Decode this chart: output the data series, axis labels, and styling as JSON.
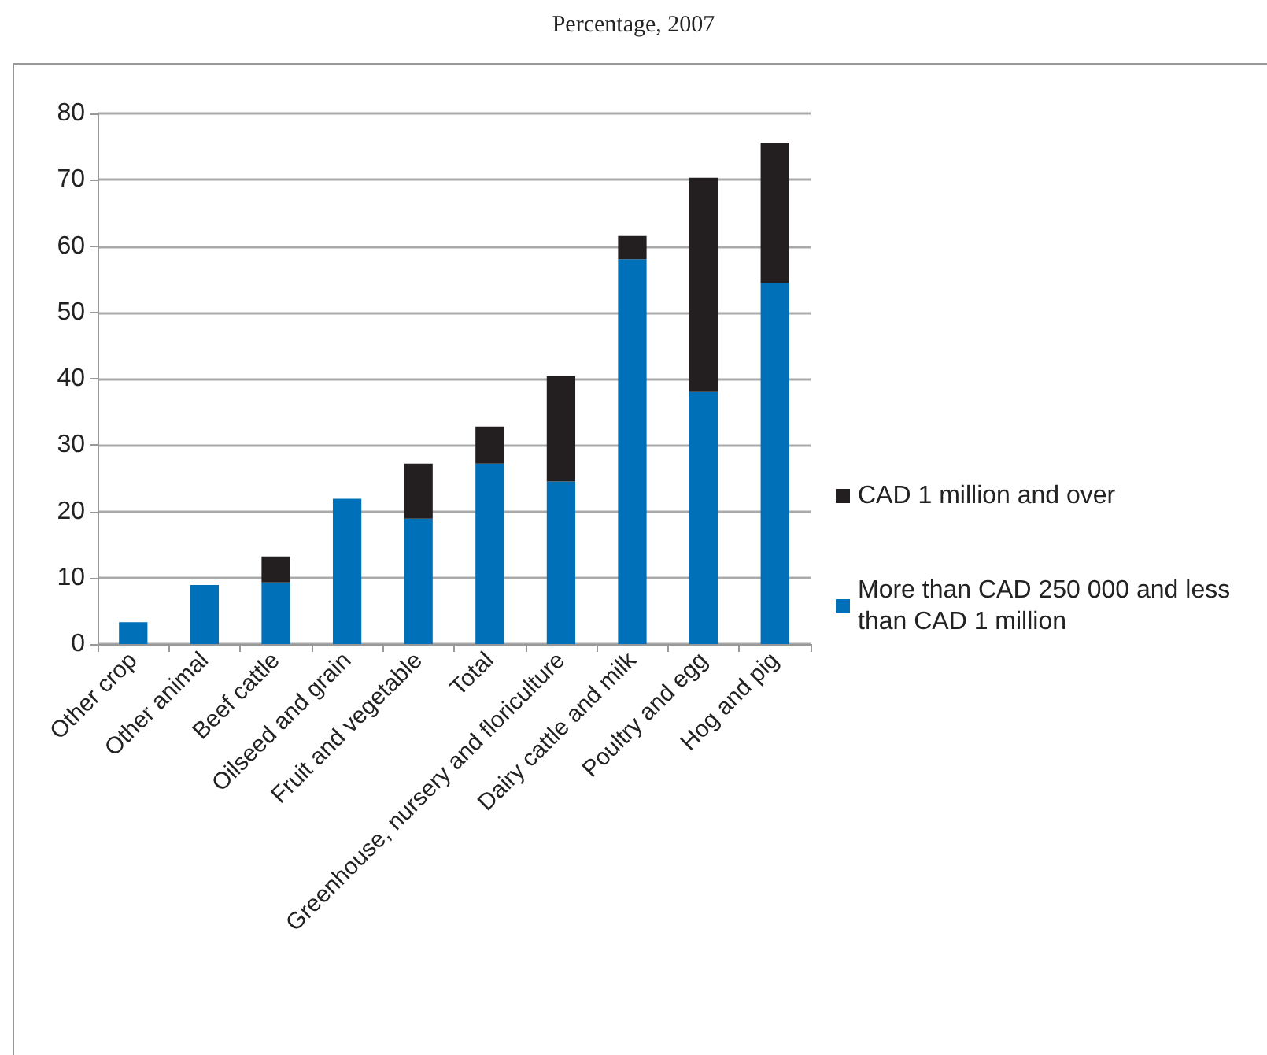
{
  "chart_data": {
    "type": "bar",
    "title": "Percentage, 2007",
    "categories": [
      "Other crop",
      "Other animal",
      "Beef cattle",
      "Oilseed and grain",
      "Fruit and vegetable",
      "Total",
      "Greenhouse, nursery and floriculture",
      "Dairy cattle and milk",
      "Poultry and egg",
      "Hog and pig"
    ],
    "stacked": true,
    "series": [
      {
        "name": "More than CAD 250 000 and less than CAD 1 million",
        "color": "#0070b8",
        "values": [
          3.3,
          8.9,
          9.3,
          21.9,
          18.9,
          27.2,
          24.5,
          58.0,
          38.0,
          54.4
        ]
      },
      {
        "name": "CAD 1 million and over",
        "color": "#231f20",
        "values": [
          null,
          null,
          3.9,
          null,
          8.3,
          5.6,
          15.9,
          3.5,
          32.3,
          21.2
        ]
      }
    ],
    "ylim": [
      0,
      80
    ],
    "yticks": [
      0,
      10,
      20,
      30,
      40,
      50,
      60,
      70,
      80
    ],
    "grid": "y",
    "legend": "right"
  }
}
